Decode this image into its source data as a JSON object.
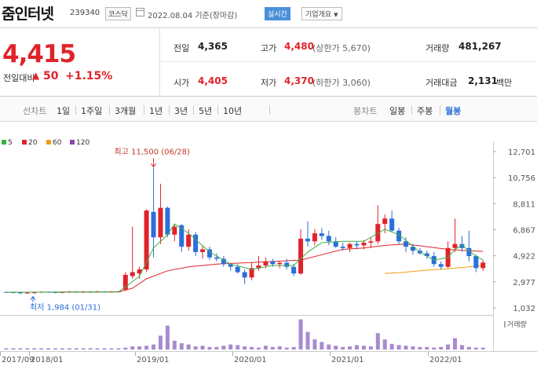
{
  "header": {
    "title": "줌인터넷",
    "code": "239340",
    "market": "코스닥",
    "date": "2022.08.04 기준(장마감)",
    "realtime": "실시간",
    "corp_info": "기업개요",
    "corp_arrow": "▼"
  },
  "price": {
    "current": "4,415",
    "change_label": "전일대비",
    "change_arrow": "▲",
    "change": "50",
    "change_pct": "+1.15%"
  },
  "stats": {
    "prev_label": "전일",
    "prev": "4,365",
    "high_label": "고가",
    "high": "4,480",
    "high_limit": "(상한가 5,670)",
    "volume_label": "거래량",
    "volume": "481,267",
    "open_label": "시가",
    "open": "4,405",
    "low_label": "저가",
    "low": "4,370",
    "low_limit": "(하한가 3,060)",
    "amount_label": "거래대금",
    "amount": "2,131",
    "amount_unit": "백만"
  },
  "tabs": {
    "line_label": "선차트",
    "line": [
      "1일",
      "1주일",
      "3개월",
      "1년",
      "3년",
      "5년",
      "10년"
    ],
    "candle_label": "봉차트",
    "candle": [
      "일봉",
      "주봉",
      "월봉"
    ],
    "active_candle": "월봉"
  },
  "legend": [
    {
      "label": "5",
      "color": "#3cb043"
    },
    {
      "label": "20",
      "color": "#e0232b"
    },
    {
      "label": "60",
      "color": "#f39c12"
    },
    {
      "label": "120",
      "color": "#8e44ad"
    }
  ],
  "annotations": {
    "high": "최고 11,500 (06/28)",
    "low": "최저 1,984 (01/31)"
  },
  "volume_label": "거래량",
  "chart_data": {
    "type": "candlestick",
    "yticks": [
      12701,
      10756,
      8811,
      6867,
      4922,
      2977,
      1032
    ],
    "ylim": [
      1032,
      12701
    ],
    "xticks": [
      "2017/09",
      "2018/01",
      "2019/01",
      "2020/01",
      "2021/01",
      "2022/01"
    ],
    "up_color": "#e0232b",
    "down_color": "#2a6fdb",
    "candles": [
      {
        "o": 2220,
        "h": 2240,
        "l": 2150,
        "c": 2200
      },
      {
        "o": 2200,
        "h": 2230,
        "l": 2120,
        "c": 2180
      },
      {
        "o": 2180,
        "h": 2200,
        "l": 2050,
        "c": 2150
      },
      {
        "o": 2150,
        "h": 2190,
        "l": 2080,
        "c": 2170
      },
      {
        "o": 2170,
        "h": 2260,
        "l": 2100,
        "c": 2190
      },
      {
        "o": 2190,
        "h": 2280,
        "l": 2140,
        "c": 2230
      },
      {
        "o": 2230,
        "h": 2260,
        "l": 2150,
        "c": 2210
      },
      {
        "o": 2210,
        "h": 2250,
        "l": 2120,
        "c": 2190
      },
      {
        "o": 2190,
        "h": 2250,
        "l": 2120,
        "c": 2210
      },
      {
        "o": 2210,
        "h": 2300,
        "l": 2150,
        "c": 2240
      },
      {
        "o": 2240,
        "h": 2260,
        "l": 2140,
        "c": 2200
      },
      {
        "o": 2200,
        "h": 2290,
        "l": 2150,
        "c": 2240
      },
      {
        "o": 2240,
        "h": 2280,
        "l": 2150,
        "c": 2210
      },
      {
        "o": 2210,
        "h": 2320,
        "l": 2160,
        "c": 2260
      },
      {
        "o": 2260,
        "h": 2300,
        "l": 2180,
        "c": 2220
      },
      {
        "o": 2220,
        "h": 2290,
        "l": 2170,
        "c": 2240
      },
      {
        "o": 2240,
        "h": 2300,
        "l": 2200,
        "c": 2260
      },
      {
        "o": 2400,
        "h": 3700,
        "l": 2300,
        "c": 3500
      },
      {
        "o": 3400,
        "h": 7100,
        "l": 3200,
        "c": 3700
      },
      {
        "o": 3600,
        "h": 4100,
        "l": 3200,
        "c": 3900
      },
      {
        "o": 3900,
        "h": 8400,
        "l": 3700,
        "c": 8300
      },
      {
        "o": 8200,
        "h": 11500,
        "l": 4800,
        "c": 6300
      },
      {
        "o": 6300,
        "h": 10300,
        "l": 5800,
        "c": 8500
      },
      {
        "o": 8500,
        "h": 8600,
        "l": 6300,
        "c": 6500
      },
      {
        "o": 6500,
        "h": 7300,
        "l": 6000,
        "c": 7100
      },
      {
        "o": 7200,
        "h": 7300,
        "l": 5200,
        "c": 5600
      },
      {
        "o": 5600,
        "h": 6900,
        "l": 5300,
        "c": 6500
      },
      {
        "o": 6500,
        "h": 6700,
        "l": 4900,
        "c": 5200
      },
      {
        "o": 5200,
        "h": 5700,
        "l": 4700,
        "c": 5400
      },
      {
        "o": 5400,
        "h": 5600,
        "l": 4600,
        "c": 4800
      },
      {
        "o": 4800,
        "h": 5100,
        "l": 4500,
        "c": 4700
      },
      {
        "o": 4700,
        "h": 4900,
        "l": 4100,
        "c": 4300
      },
      {
        "o": 4300,
        "h": 4400,
        "l": 3800,
        "c": 4100
      },
      {
        "o": 4100,
        "h": 4300,
        "l": 3600,
        "c": 3700
      },
      {
        "o": 3700,
        "h": 3900,
        "l": 2800,
        "c": 3300
      },
      {
        "o": 3300,
        "h": 4400,
        "l": 3100,
        "c": 4000
      },
      {
        "o": 4000,
        "h": 4900,
        "l": 3800,
        "c": 4200
      },
      {
        "o": 4200,
        "h": 4800,
        "l": 4000,
        "c": 4500
      },
      {
        "o": 4500,
        "h": 4700,
        "l": 4100,
        "c": 4300
      },
      {
        "o": 4300,
        "h": 4500,
        "l": 4000,
        "c": 4400
      },
      {
        "o": 4400,
        "h": 4700,
        "l": 3900,
        "c": 4100
      },
      {
        "o": 4100,
        "h": 4300,
        "l": 3400,
        "c": 3600
      },
      {
        "o": 3600,
        "h": 6900,
        "l": 3500,
        "c": 6200
      },
      {
        "o": 6200,
        "h": 7500,
        "l": 5600,
        "c": 6000
      },
      {
        "o": 6000,
        "h": 6900,
        "l": 5700,
        "c": 6600
      },
      {
        "o": 6600,
        "h": 7000,
        "l": 6100,
        "c": 6400
      },
      {
        "o": 6400,
        "h": 6800,
        "l": 5700,
        "c": 6000
      },
      {
        "o": 6000,
        "h": 6300,
        "l": 5500,
        "c": 5600
      },
      {
        "o": 5600,
        "h": 5900,
        "l": 5300,
        "c": 5500
      },
      {
        "o": 5500,
        "h": 5900,
        "l": 5200,
        "c": 5800
      },
      {
        "o": 5800,
        "h": 6000,
        "l": 5400,
        "c": 5700
      },
      {
        "o": 5700,
        "h": 6100,
        "l": 5400,
        "c": 5900
      },
      {
        "o": 5900,
        "h": 6300,
        "l": 5500,
        "c": 6000
      },
      {
        "o": 6000,
        "h": 8700,
        "l": 5800,
        "c": 7300
      },
      {
        "o": 7300,
        "h": 8000,
        "l": 6600,
        "c": 7700
      },
      {
        "o": 7700,
        "h": 8300,
        "l": 6700,
        "c": 6800
      },
      {
        "o": 6800,
        "h": 7000,
        "l": 5800,
        "c": 6000
      },
      {
        "o": 6000,
        "h": 6300,
        "l": 5200,
        "c": 5600
      },
      {
        "o": 5600,
        "h": 5800,
        "l": 5000,
        "c": 5300
      },
      {
        "o": 5300,
        "h": 5500,
        "l": 5000,
        "c": 5100
      },
      {
        "o": 5100,
        "h": 5300,
        "l": 4700,
        "c": 4900
      },
      {
        "o": 4900,
        "h": 5200,
        "l": 4100,
        "c": 4300
      },
      {
        "o": 4300,
        "h": 4500,
        "l": 3900,
        "c": 4100
      },
      {
        "o": 4100,
        "h": 6000,
        "l": 4000,
        "c": 5500
      },
      {
        "o": 5500,
        "h": 7700,
        "l": 5200,
        "c": 5800
      },
      {
        "o": 5800,
        "h": 6400,
        "l": 5200,
        "c": 5500
      },
      {
        "o": 5500,
        "h": 6800,
        "l": 4500,
        "c": 4900
      },
      {
        "o": 4900,
        "h": 5000,
        "l": 3700,
        "c": 4000
      },
      {
        "o": 4000,
        "h": 4600,
        "l": 3800,
        "c": 4415
      }
    ],
    "ma5": [
      [
        0,
        2200
      ],
      [
        16,
        2220
      ],
      [
        17,
        2600
      ],
      [
        19,
        3400
      ],
      [
        21,
        5500
      ],
      [
        23,
        6500
      ],
      [
        24,
        7300
      ],
      [
        26,
        6600
      ],
      [
        29,
        5200
      ],
      [
        32,
        4300
      ],
      [
        35,
        3900
      ],
      [
        38,
        4200
      ],
      [
        41,
        4200
      ],
      [
        43,
        5200
      ],
      [
        45,
        5900
      ],
      [
        48,
        6000
      ],
      [
        51,
        6000
      ],
      [
        54,
        6900
      ],
      [
        56,
        6500
      ],
      [
        59,
        5200
      ],
      [
        61,
        4600
      ],
      [
        63,
        4800
      ],
      [
        64,
        5400
      ],
      [
        65,
        5700
      ],
      [
        67,
        4900
      ],
      [
        68,
        4600
      ]
    ],
    "ma20": [
      [
        0,
        2200
      ],
      [
        16,
        2230
      ],
      [
        18,
        2500
      ],
      [
        20,
        3200
      ],
      [
        23,
        3800
      ],
      [
        26,
        4100
      ],
      [
        30,
        4300
      ],
      [
        34,
        4400
      ],
      [
        38,
        4500
      ],
      [
        42,
        4600
      ],
      [
        45,
        5000
      ],
      [
        48,
        5400
      ],
      [
        51,
        5500
      ],
      [
        54,
        5700
      ],
      [
        57,
        5800
      ],
      [
        60,
        5600
      ],
      [
        63,
        5400
      ],
      [
        66,
        5300
      ],
      [
        68,
        5250
      ]
    ],
    "ma60": [
      [
        54,
        3600
      ],
      [
        57,
        3700
      ],
      [
        60,
        3850
      ],
      [
        63,
        3950
      ],
      [
        66,
        4100
      ],
      [
        68,
        4200
      ]
    ],
    "volumes": [
      2,
      2,
      2,
      2,
      2,
      2,
      2,
      2,
      2,
      2,
      2,
      2,
      2,
      2,
      2,
      2,
      2,
      3,
      5,
      5,
      6,
      8,
      22,
      38,
      14,
      10,
      8,
      5,
      6,
      4,
      4,
      6,
      8,
      7,
      5,
      4,
      3,
      6,
      4,
      5,
      3,
      4,
      48,
      28,
      16,
      12,
      8,
      6,
      4,
      5,
      7,
      6,
      5,
      26,
      16,
      9,
      7,
      6,
      5,
      4,
      4,
      3,
      4,
      8,
      18,
      7,
      4,
      3,
      3
    ]
  }
}
